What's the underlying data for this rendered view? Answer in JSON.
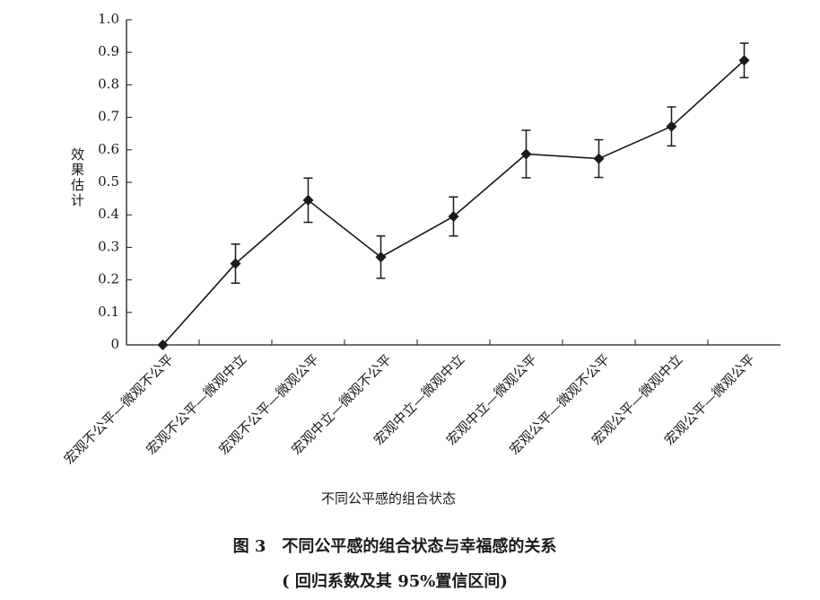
{
  "chart_data": {
    "type": "line",
    "title": "图 3　不同公平感的组合状态与幸福感的关系",
    "subtitle": "( 回归系数及其 95%置信区间)",
    "x_label": "不同公平感的组合状态",
    "y_label": "效果估计",
    "categories": [
      "宏观不公平—微观不公平",
      "宏观不公平—微观中立",
      "宏观不公平—微观公平",
      "宏观中立—微观不公平",
      "宏观中立—微观中立",
      "宏观中立—微观公平",
      "宏观公平—微观不公平",
      "宏观公平—微观中立",
      "宏观公平—微观公平"
    ],
    "values": [
      0,
      0.25,
      0.445,
      0.27,
      0.395,
      0.587,
      0.573,
      0.672,
      0.875
    ],
    "errors": [
      null,
      0.06,
      0.068,
      0.065,
      0.06,
      0.073,
      0.058,
      0.06,
      0.053
    ],
    "color": "#1a1a1a",
    "ylim": [
      0,
      1
    ],
    "yticks": [
      0,
      0.1,
      0.2,
      0.3,
      0.4,
      0.5,
      0.6,
      0.7,
      0.8,
      0.9,
      {
        "value": 1,
        "label": "1.0"
      }
    ]
  }
}
